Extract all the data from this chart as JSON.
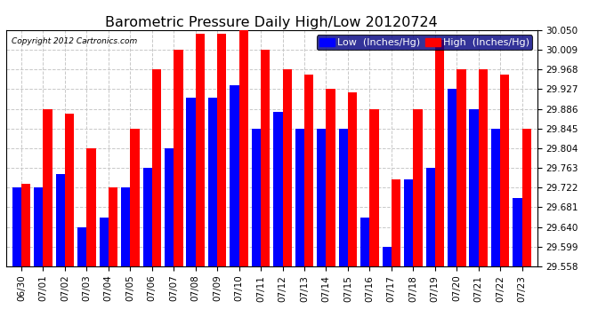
{
  "title": "Barometric Pressure Daily High/Low 20120724",
  "copyright": "Copyright 2012 Cartronics.com",
  "legend_low": "Low  (Inches/Hg)",
  "legend_high": "High  (Inches/Hg)",
  "dates": [
    "06/30",
    "07/01",
    "07/02",
    "07/03",
    "07/04",
    "07/05",
    "07/06",
    "07/07",
    "07/08",
    "07/09",
    "07/10",
    "07/11",
    "07/12",
    "07/13",
    "07/14",
    "07/15",
    "07/16",
    "07/17",
    "07/18",
    "07/19",
    "07/20",
    "07/21",
    "07/22",
    "07/23"
  ],
  "low_values": [
    29.722,
    29.722,
    29.75,
    29.64,
    29.66,
    29.722,
    29.763,
    29.804,
    29.91,
    29.91,
    29.935,
    29.845,
    29.88,
    29.845,
    29.845,
    29.845,
    29.66,
    29.599,
    29.74,
    29.763,
    29.927,
    29.886,
    29.845,
    29.7
  ],
  "high_values": [
    29.73,
    29.886,
    29.875,
    29.804,
    29.722,
    29.845,
    29.968,
    30.009,
    30.042,
    30.042,
    30.05,
    30.009,
    29.968,
    29.958,
    29.927,
    29.92,
    29.886,
    29.74,
    29.886,
    30.03,
    29.968,
    29.968,
    29.958,
    29.845
  ],
  "ylim_min": 29.558,
  "ylim_max": 30.05,
  "yticks": [
    29.558,
    29.599,
    29.64,
    29.681,
    29.722,
    29.763,
    29.804,
    29.845,
    29.886,
    29.927,
    29.968,
    30.009,
    30.05
  ],
  "low_color": "#0000FF",
  "high_color": "#FF0000",
  "background_color": "#FFFFFF",
  "grid_color": "#C8C8C8",
  "title_fontsize": 11.5,
  "tick_fontsize": 7.5,
  "legend_fontsize": 8,
  "bar_width": 0.42
}
